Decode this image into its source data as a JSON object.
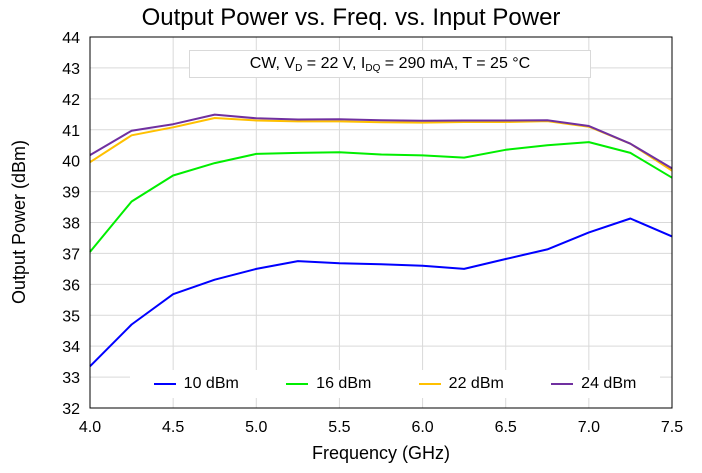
{
  "chart_data": {
    "type": "line",
    "title": "Output Power vs. Freq. vs. Input Power",
    "xlabel": "Frequency (GHz)",
    "ylabel": "Output Power (dBm)",
    "annotation": {
      "prefix": "CW, V",
      "vd_sub": "D",
      "mid1": " = 22 V, I",
      "idq_sub": "DQ",
      "suffix": " = 290 mA, T = 25 °C"
    },
    "xlim": [
      4.0,
      7.5
    ],
    "ylim": [
      32,
      44
    ],
    "xticks": [
      "4.0",
      "4.5",
      "5.0",
      "5.5",
      "6.0",
      "6.5",
      "7.0",
      "7.5"
    ],
    "yticks": [
      "32",
      "33",
      "34",
      "35",
      "36",
      "37",
      "38",
      "39",
      "40",
      "41",
      "42",
      "43",
      "44"
    ],
    "grid": true,
    "legend_position": "bottom",
    "x": [
      4.0,
      4.25,
      4.5,
      4.75,
      5.0,
      5.25,
      5.5,
      5.75,
      6.0,
      6.25,
      6.5,
      6.75,
      7.0,
      7.25,
      7.5
    ],
    "series": [
      {
        "name": "10 dBm",
        "color": "#0000ff",
        "values": [
          33.35,
          34.7,
          35.68,
          36.15,
          36.5,
          36.75,
          36.68,
          36.65,
          36.6,
          36.5,
          36.82,
          37.13,
          37.68,
          38.13,
          37.55
        ]
      },
      {
        "name": "16 dBm",
        "color": "#00ee00",
        "values": [
          37.05,
          38.68,
          39.52,
          39.92,
          40.22,
          40.25,
          40.27,
          40.2,
          40.17,
          40.1,
          40.35,
          40.5,
          40.6,
          40.25,
          39.45
        ]
      },
      {
        "name": "22 dBm",
        "color": "#ffc000",
        "values": [
          39.95,
          40.82,
          41.08,
          41.38,
          41.3,
          41.27,
          41.27,
          41.24,
          41.23,
          41.25,
          41.25,
          41.28,
          41.1,
          40.55,
          39.68
        ]
      },
      {
        "name": "24 dBm",
        "color": "#7030a0",
        "values": [
          40.18,
          40.97,
          41.18,
          41.49,
          41.37,
          41.33,
          41.34,
          41.31,
          41.29,
          41.3,
          41.3,
          41.31,
          41.12,
          40.55,
          39.75
        ]
      }
    ]
  }
}
